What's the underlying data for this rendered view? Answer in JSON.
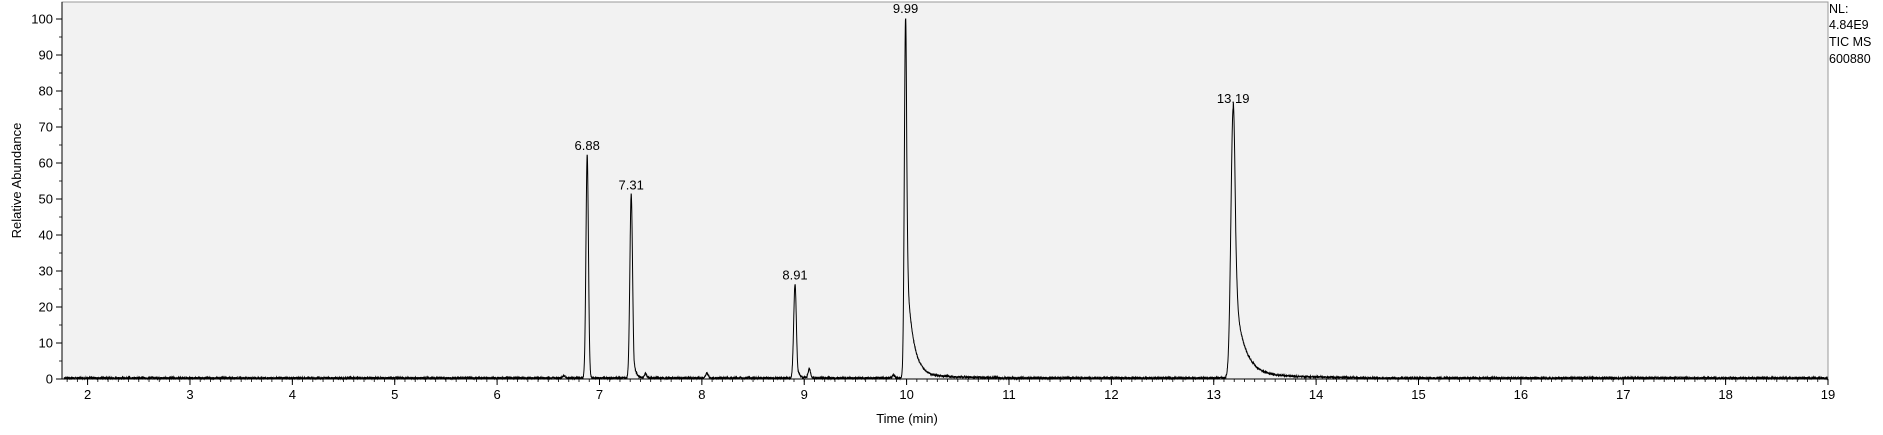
{
  "chart_data": {
    "type": "line",
    "xlabel": "Time (min)",
    "ylabel": "Relative Abundance",
    "xlim": [
      1.75,
      19.0
    ],
    "ylim": [
      0,
      100
    ],
    "x_ticks": [
      2,
      3,
      4,
      5,
      6,
      7,
      8,
      9,
      10,
      11,
      12,
      13,
      14,
      15,
      16,
      17,
      18,
      19
    ],
    "y_ticks": [
      0,
      10,
      20,
      30,
      40,
      50,
      60,
      70,
      80,
      90,
      100
    ],
    "grid": false,
    "info": [
      "NL:",
      "4.84E9",
      "TIC  MS",
      "600880"
    ],
    "peaks": [
      {
        "label": "6.88",
        "rt": 6.88,
        "height": 62,
        "width": 0.012,
        "tail": 0.005,
        "line": "solid"
      },
      {
        "label": "7.31",
        "rt": 7.31,
        "height": 51,
        "width": 0.013,
        "tail": 0.02,
        "line": "solid"
      },
      {
        "label": "8.91",
        "rt": 8.91,
        "height": 26,
        "width": 0.013,
        "tail": 0.02,
        "line": "solid"
      },
      {
        "label": "9.99",
        "rt": 9.99,
        "height": 100,
        "width": 0.012,
        "tail": 0.06,
        "line": "solid"
      },
      {
        "label": "13.19",
        "rt": 13.19,
        "height": 75,
        "width": 0.022,
        "tail": 0.09,
        "line": "solid"
      }
    ],
    "minor_peaks": [
      {
        "rt": 7.45,
        "height": 1.2
      },
      {
        "rt": 8.05,
        "height": 1.4
      },
      {
        "rt": 9.05,
        "height": 2.5
      },
      {
        "rt": 9.87,
        "height": 0.8
      },
      {
        "rt": 6.65,
        "height": 0.6
      }
    ],
    "baseline": 0.3,
    "line_color": "#000000",
    "plot_background": "#f2f2f2"
  }
}
